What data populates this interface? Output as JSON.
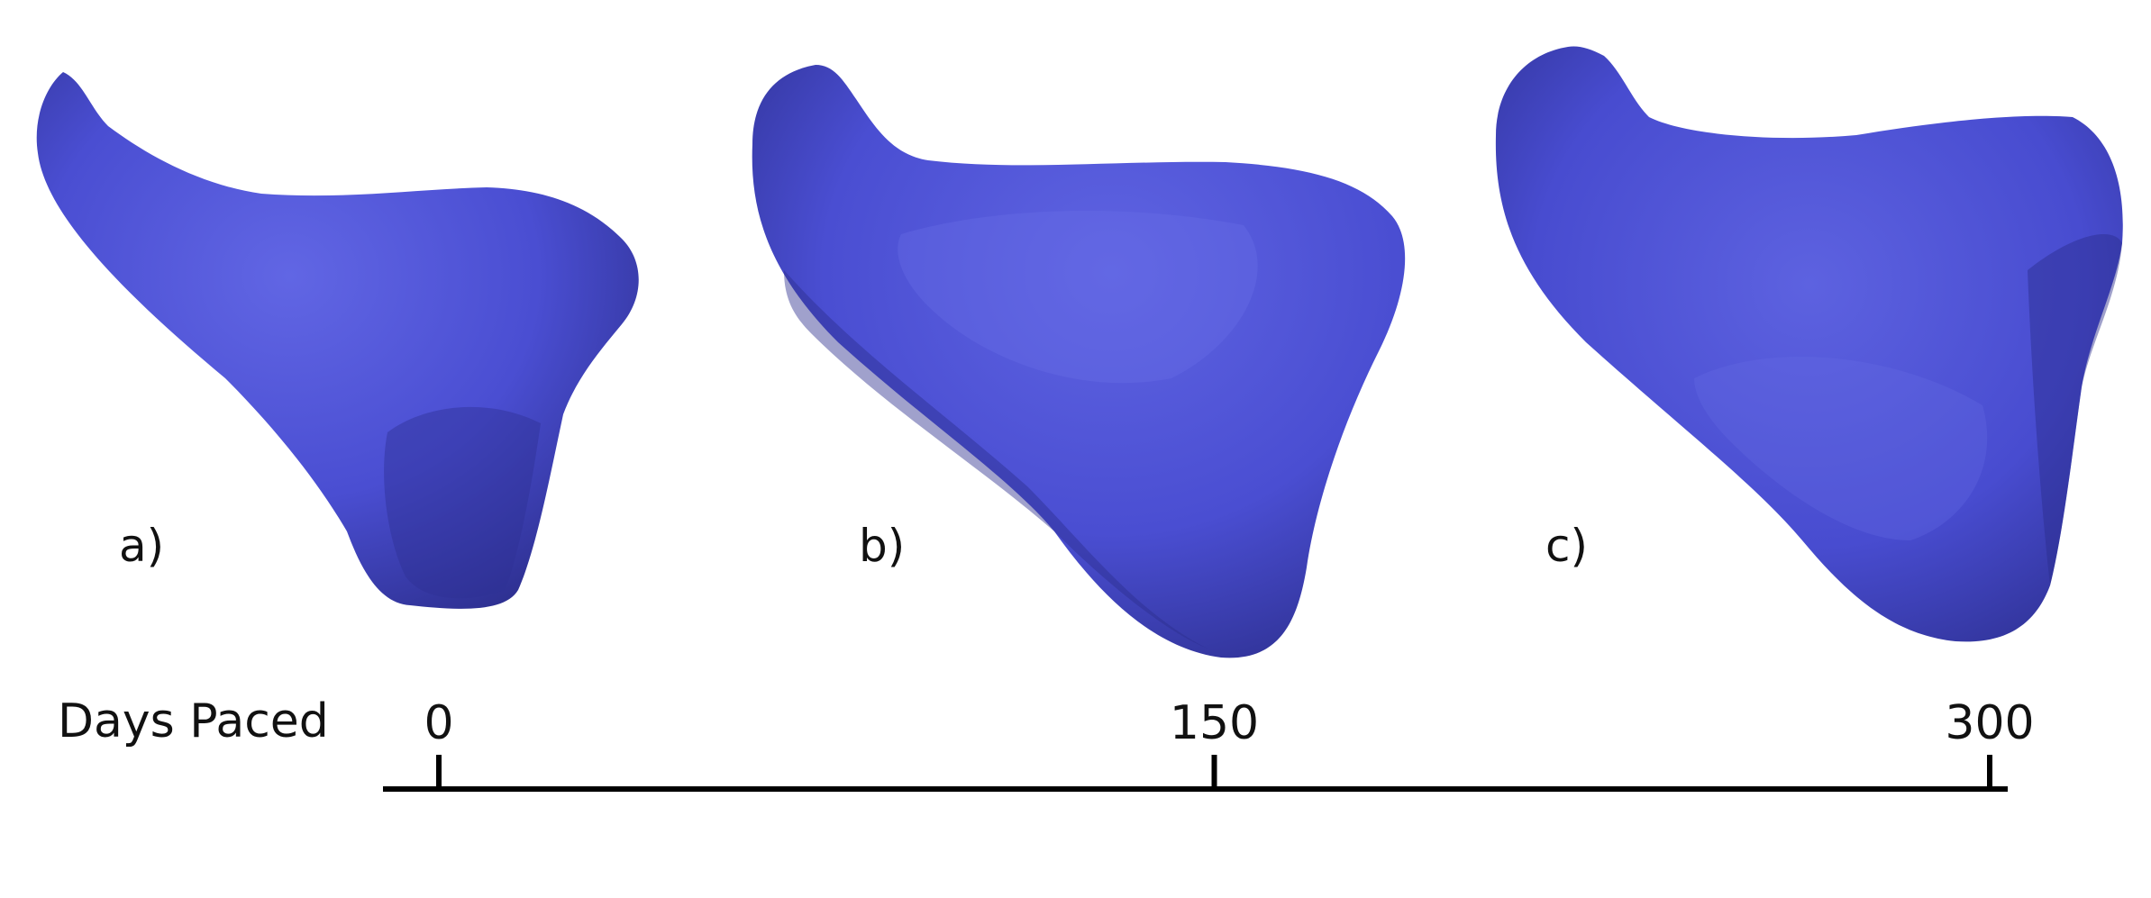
{
  "colors": {
    "surface": "#4b4fd4",
    "surface_light": "#6468e6",
    "surface_dark": "#2b2d8a",
    "axis": "#000000"
  },
  "panels": [
    {
      "label": "a)"
    },
    {
      "label": "b)"
    },
    {
      "label": "c)"
    }
  ],
  "timeline": {
    "title": "Days Paced",
    "ticks": [
      {
        "value": 0,
        "label": "0"
      },
      {
        "value": 150,
        "label": "150"
      },
      {
        "value": 300,
        "label": "300"
      }
    ],
    "range": [
      0,
      300
    ]
  }
}
